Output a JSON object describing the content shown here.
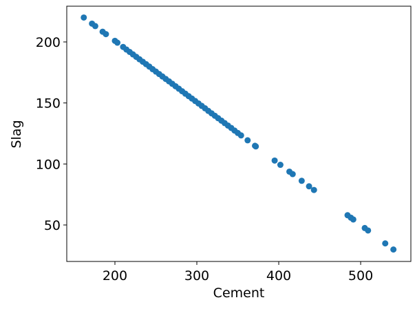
{
  "chart_data": {
    "type": "scatter",
    "x_label": "Cement",
    "y_label": "Slag",
    "color": "#1f77b4",
    "x": [
      162,
      172,
      176,
      185,
      189,
      200,
      203,
      210,
      214,
      218,
      222,
      226,
      230,
      234,
      238,
      242,
      246,
      250,
      254,
      258,
      262,
      266,
      270,
      274,
      278,
      282,
      286,
      290,
      294,
      298,
      302,
      306,
      310,
      314,
      318,
      322,
      326,
      330,
      334,
      338,
      342,
      346,
      350,
      354,
      362,
      371,
      372,
      395,
      402,
      413,
      417,
      428,
      437,
      443,
      484,
      488,
      491,
      505,
      509,
      530,
      540
    ],
    "values": [
      220,
      215,
      213,
      208.4,
      206.4,
      200.9,
      199.4,
      195.9,
      193.8,
      191.8,
      189.8,
      187.8,
      185.8,
      183.8,
      181.8,
      179.8,
      177.7,
      175.7,
      173.7,
      171.7,
      169.7,
      167.7,
      165.7,
      163.7,
      161.7,
      159.6,
      157.6,
      155.6,
      153.6,
      151.6,
      149.6,
      147.6,
      145.6,
      143.5,
      141.5,
      139.5,
      137.5,
      135.5,
      133.5,
      131.5,
      129.5,
      127.4,
      125.4,
      123.4,
      119.4,
      114.9,
      114.4,
      102.8,
      99.3,
      93.7,
      91.7,
      86.2,
      81.7,
      78.7,
      58.0,
      56.0,
      54.5,
      47.5,
      45.5,
      34.9,
      29.9
    ],
    "xlim": [
      141.2,
      561.3
    ],
    "ylim": [
      20.1,
      229.3
    ],
    "xticks": [
      200,
      300,
      400,
      500
    ],
    "yticks": [
      50,
      100,
      150,
      200
    ]
  }
}
